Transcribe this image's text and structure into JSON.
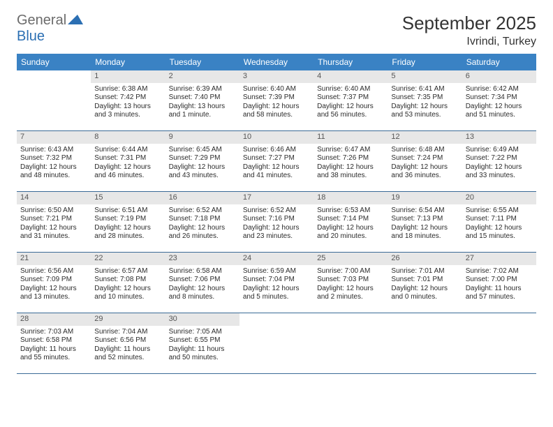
{
  "logo": {
    "part1": "General",
    "part2": "Blue"
  },
  "title": "September 2025",
  "location": "Ivrindi, Turkey",
  "colors": {
    "header_bg": "#3a82c4",
    "header_text": "#ffffff",
    "daynum_bg": "#e7e7e7",
    "daynum_text": "#555555",
    "rule": "#3a6a96",
    "logo_gray": "#6b6b6b",
    "logo_blue": "#2b6fb3"
  },
  "days_of_week": [
    "Sunday",
    "Monday",
    "Tuesday",
    "Wednesday",
    "Thursday",
    "Friday",
    "Saturday"
  ],
  "start_offset": 1,
  "days": [
    {
      "n": 1,
      "sr": "6:38 AM",
      "ss": "7:42 PM",
      "dl": "13 hours and 3 minutes."
    },
    {
      "n": 2,
      "sr": "6:39 AM",
      "ss": "7:40 PM",
      "dl": "13 hours and 1 minute."
    },
    {
      "n": 3,
      "sr": "6:40 AM",
      "ss": "7:39 PM",
      "dl": "12 hours and 58 minutes."
    },
    {
      "n": 4,
      "sr": "6:40 AM",
      "ss": "7:37 PM",
      "dl": "12 hours and 56 minutes."
    },
    {
      "n": 5,
      "sr": "6:41 AM",
      "ss": "7:35 PM",
      "dl": "12 hours and 53 minutes."
    },
    {
      "n": 6,
      "sr": "6:42 AM",
      "ss": "7:34 PM",
      "dl": "12 hours and 51 minutes."
    },
    {
      "n": 7,
      "sr": "6:43 AM",
      "ss": "7:32 PM",
      "dl": "12 hours and 48 minutes."
    },
    {
      "n": 8,
      "sr": "6:44 AM",
      "ss": "7:31 PM",
      "dl": "12 hours and 46 minutes."
    },
    {
      "n": 9,
      "sr": "6:45 AM",
      "ss": "7:29 PM",
      "dl": "12 hours and 43 minutes."
    },
    {
      "n": 10,
      "sr": "6:46 AM",
      "ss": "7:27 PM",
      "dl": "12 hours and 41 minutes."
    },
    {
      "n": 11,
      "sr": "6:47 AM",
      "ss": "7:26 PM",
      "dl": "12 hours and 38 minutes."
    },
    {
      "n": 12,
      "sr": "6:48 AM",
      "ss": "7:24 PM",
      "dl": "12 hours and 36 minutes."
    },
    {
      "n": 13,
      "sr": "6:49 AM",
      "ss": "7:22 PM",
      "dl": "12 hours and 33 minutes."
    },
    {
      "n": 14,
      "sr": "6:50 AM",
      "ss": "7:21 PM",
      "dl": "12 hours and 31 minutes."
    },
    {
      "n": 15,
      "sr": "6:51 AM",
      "ss": "7:19 PM",
      "dl": "12 hours and 28 minutes."
    },
    {
      "n": 16,
      "sr": "6:52 AM",
      "ss": "7:18 PM",
      "dl": "12 hours and 26 minutes."
    },
    {
      "n": 17,
      "sr": "6:52 AM",
      "ss": "7:16 PM",
      "dl": "12 hours and 23 minutes."
    },
    {
      "n": 18,
      "sr": "6:53 AM",
      "ss": "7:14 PM",
      "dl": "12 hours and 20 minutes."
    },
    {
      "n": 19,
      "sr": "6:54 AM",
      "ss": "7:13 PM",
      "dl": "12 hours and 18 minutes."
    },
    {
      "n": 20,
      "sr": "6:55 AM",
      "ss": "7:11 PM",
      "dl": "12 hours and 15 minutes."
    },
    {
      "n": 21,
      "sr": "6:56 AM",
      "ss": "7:09 PM",
      "dl": "12 hours and 13 minutes."
    },
    {
      "n": 22,
      "sr": "6:57 AM",
      "ss": "7:08 PM",
      "dl": "12 hours and 10 minutes."
    },
    {
      "n": 23,
      "sr": "6:58 AM",
      "ss": "7:06 PM",
      "dl": "12 hours and 8 minutes."
    },
    {
      "n": 24,
      "sr": "6:59 AM",
      "ss": "7:04 PM",
      "dl": "12 hours and 5 minutes."
    },
    {
      "n": 25,
      "sr": "7:00 AM",
      "ss": "7:03 PM",
      "dl": "12 hours and 2 minutes."
    },
    {
      "n": 26,
      "sr": "7:01 AM",
      "ss": "7:01 PM",
      "dl": "12 hours and 0 minutes."
    },
    {
      "n": 27,
      "sr": "7:02 AM",
      "ss": "7:00 PM",
      "dl": "11 hours and 57 minutes."
    },
    {
      "n": 28,
      "sr": "7:03 AM",
      "ss": "6:58 PM",
      "dl": "11 hours and 55 minutes."
    },
    {
      "n": 29,
      "sr": "7:04 AM",
      "ss": "6:56 PM",
      "dl": "11 hours and 52 minutes."
    },
    {
      "n": 30,
      "sr": "7:05 AM",
      "ss": "6:55 PM",
      "dl": "11 hours and 50 minutes."
    }
  ],
  "labels": {
    "sunrise": "Sunrise:",
    "sunset": "Sunset:",
    "daylight": "Daylight:"
  }
}
